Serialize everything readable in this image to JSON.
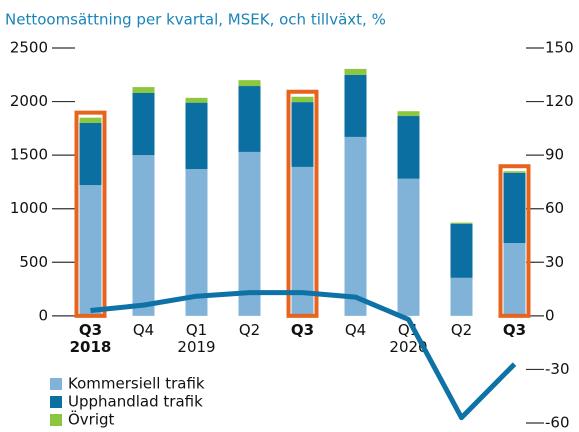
{
  "chart_data": {
    "type": "bar",
    "stacked": true,
    "title": "Nettoomsättning per kvartal, MSEK, och tillväxt, %",
    "categories": [
      "Q3 2018",
      "Q4",
      "Q1 2019",
      "Q2",
      "Q3",
      "Q4",
      "Q1 2020",
      "Q2",
      "Q3"
    ],
    "highlight": [
      true,
      false,
      false,
      false,
      true,
      false,
      false,
      false,
      true
    ],
    "highlight_color": "#e8641e",
    "series": [
      {
        "name": "Kommersiell trafik",
        "color": "#80b3d7",
        "values": [
          1220,
          1500,
          1370,
          1530,
          1390,
          1670,
          1280,
          355,
          680
        ]
      },
      {
        "name": "Upphandlad trafik",
        "color": "#0b6fa1",
        "values": [
          580,
          580,
          620,
          615,
          605,
          580,
          585,
          505,
          655
        ]
      },
      {
        "name": "Övrigt",
        "color": "#8dc63f",
        "values": [
          50,
          55,
          45,
          55,
          50,
          55,
          45,
          10,
          15
        ]
      },
      {
        "type": "line",
        "axis": "y2",
        "color": "#0f72a6",
        "values": [
          3,
          6,
          11,
          13,
          13,
          10.5,
          -2,
          -57,
          -27
        ]
      }
    ],
    "ylim": [
      -1000,
      2500
    ],
    "yticks": [
      0,
      500,
      1000,
      1500,
      2000,
      2500
    ],
    "y2lim": [
      -60,
      150
    ],
    "y2ticks": [
      -60,
      -30,
      0,
      30,
      60,
      90,
      120,
      150
    ]
  }
}
